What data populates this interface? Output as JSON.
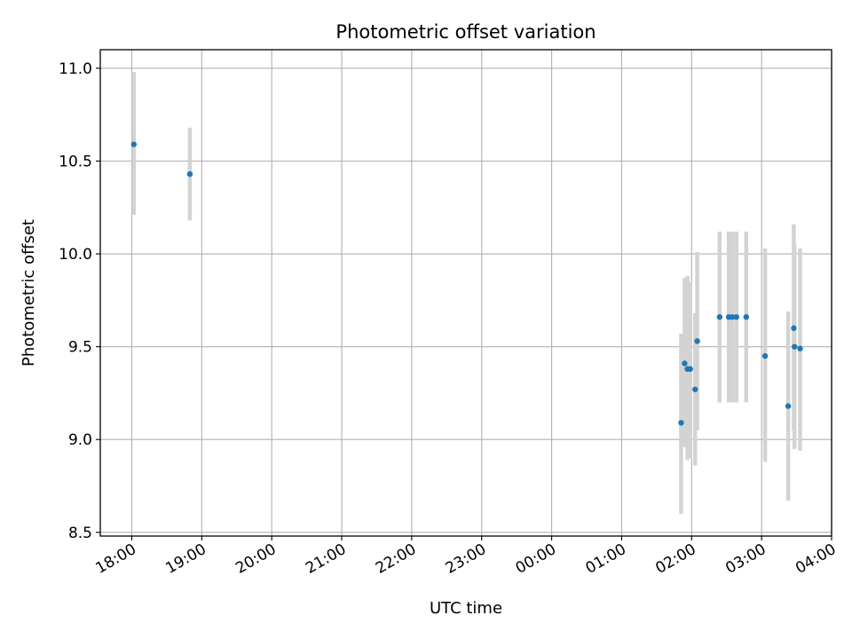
{
  "chart_data": {
    "type": "scatter",
    "title": "Photometric offset variation",
    "xlabel": "UTC time",
    "ylabel": "Photometric offset",
    "x_unit": "hour",
    "xlim": [
      17.55,
      28.0
    ],
    "ylim": [
      8.48,
      11.1
    ],
    "x_ticks": [
      18,
      19,
      20,
      21,
      22,
      23,
      24,
      25,
      26,
      27,
      28
    ],
    "x_tick_labels": [
      "18:00",
      "19:00",
      "20:00",
      "21:00",
      "22:00",
      "23:00",
      "00:00",
      "01:00",
      "02:00",
      "03:00",
      "04:00"
    ],
    "y_ticks": [
      8.5,
      9.0,
      9.5,
      10.0,
      10.5,
      11.0
    ],
    "y_tick_labels": [
      "8.5",
      "9.0",
      "9.5",
      "10.0",
      "10.5",
      "11.0"
    ],
    "grid": true,
    "colors": {
      "point": "#1f77b4",
      "errorbar": "#d3d3d3",
      "grid": "#b0b0b0"
    },
    "points": [
      {
        "x": 18.03,
        "y": 10.59,
        "ylow": 10.21,
        "yhigh": 10.98
      },
      {
        "x": 18.83,
        "y": 10.43,
        "ylow": 10.18,
        "yhigh": 10.68
      },
      {
        "x": 25.85,
        "y": 9.09,
        "ylow": 8.6,
        "yhigh": 9.57
      },
      {
        "x": 25.9,
        "y": 9.41,
        "ylow": 8.96,
        "yhigh": 9.87
      },
      {
        "x": 25.94,
        "y": 9.38,
        "ylow": 8.89,
        "yhigh": 9.88
      },
      {
        "x": 25.98,
        "y": 9.38,
        "ylow": 8.9,
        "yhigh": 9.85
      },
      {
        "x": 26.05,
        "y": 9.27,
        "ylow": 8.86,
        "yhigh": 9.68
      },
      {
        "x": 26.08,
        "y": 9.53,
        "ylow": 9.05,
        "yhigh": 10.01
      },
      {
        "x": 26.4,
        "y": 9.66,
        "ylow": 9.2,
        "yhigh": 10.12
      },
      {
        "x": 26.53,
        "y": 9.66,
        "ylow": 9.2,
        "yhigh": 10.12
      },
      {
        "x": 26.58,
        "y": 9.66,
        "ylow": 9.2,
        "yhigh": 10.12
      },
      {
        "x": 26.64,
        "y": 9.66,
        "ylow": 9.2,
        "yhigh": 10.12
      },
      {
        "x": 26.78,
        "y": 9.66,
        "ylow": 9.2,
        "yhigh": 10.12
      },
      {
        "x": 27.05,
        "y": 9.45,
        "ylow": 8.88,
        "yhigh": 10.03
      },
      {
        "x": 27.38,
        "y": 9.18,
        "ylow": 8.67,
        "yhigh": 9.69
      },
      {
        "x": 27.46,
        "y": 9.6,
        "ylow": 9.05,
        "yhigh": 10.16
      },
      {
        "x": 27.47,
        "y": 9.5,
        "ylow": 8.95,
        "yhigh": 10.05
      },
      {
        "x": 27.55,
        "y": 9.49,
        "ylow": 8.94,
        "yhigh": 10.03
      }
    ]
  }
}
